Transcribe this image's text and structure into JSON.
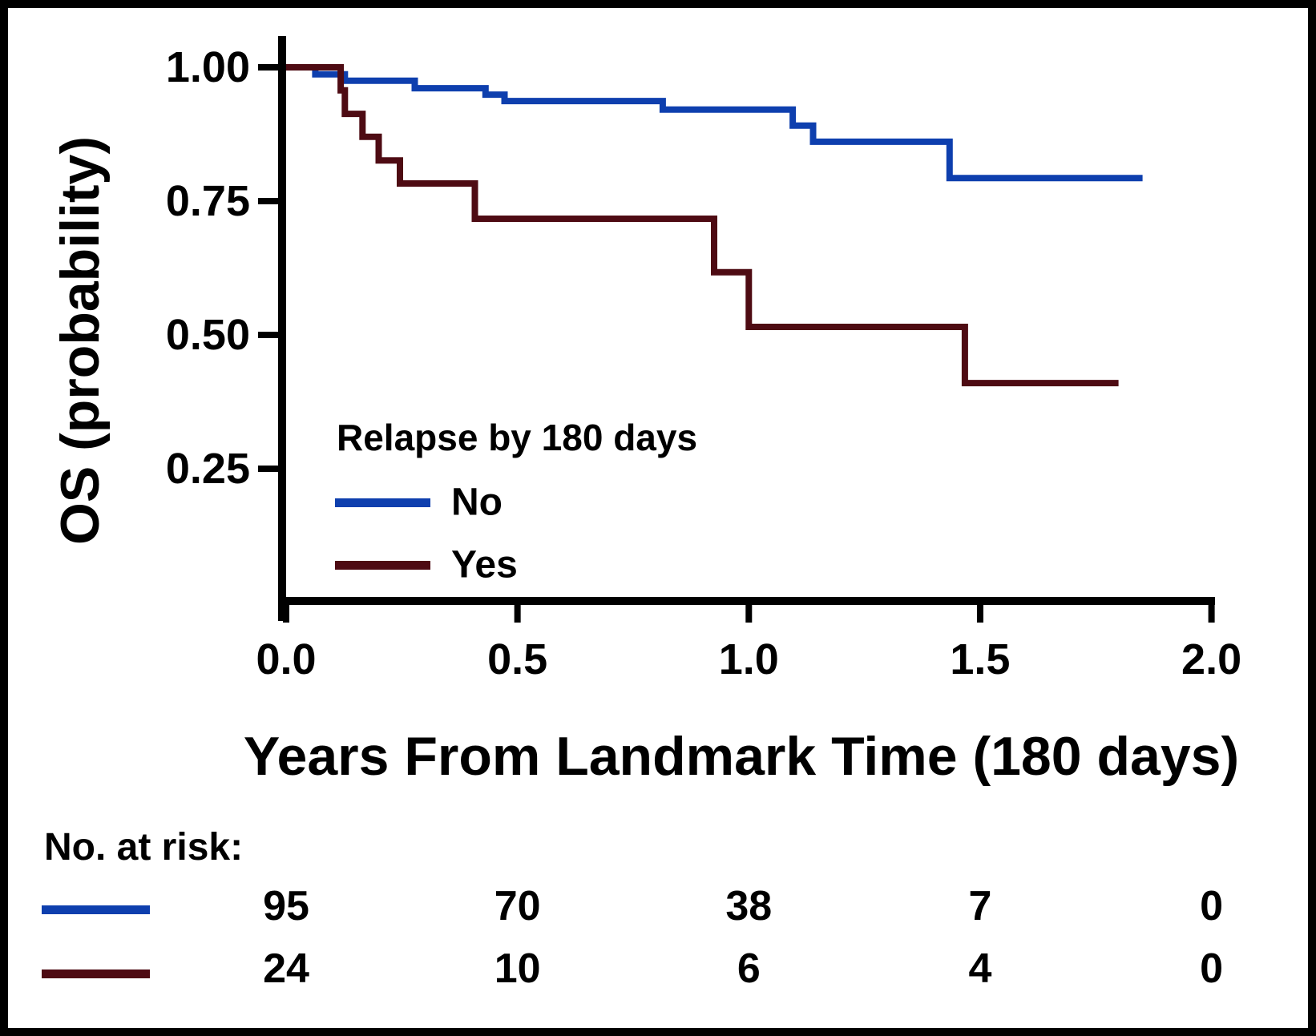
{
  "figure": {
    "background": "#ffffff",
    "border_color": "#000000"
  },
  "chart_data": {
    "type": "line",
    "subtype": "kaplan-meier-step",
    "title": "",
    "xlabel": "Years From Landmark Time (180 days)",
    "ylabel": "OS (probability)",
    "xlim": [
      0,
      2.07
    ],
    "ylim": [
      0,
      1.05
    ],
    "grid": "off",
    "axis_color": "#000000",
    "xticks": {
      "values": [
        0,
        0.5,
        1.0,
        1.5,
        2.0
      ],
      "labels": [
        "0.0",
        "0.5",
        "1.0",
        "1.5",
        "2.0"
      ]
    },
    "yticks": {
      "values": [
        1.0,
        0.75,
        0.5,
        0.25
      ],
      "labels": [
        "1.00",
        "0.75",
        "0.50",
        "0.25"
      ]
    },
    "legend": {
      "title": "Relapse by 180 days",
      "position": "inside-lower-left",
      "entries": [
        {
          "label": "No",
          "color": "#0e3fae"
        },
        {
          "label": "Yes",
          "color": "#4e0b13"
        }
      ]
    },
    "series": [
      {
        "name": "No",
        "color": "#0e3fae",
        "start": [
          0,
          1.0
        ],
        "drops": [
          [
            0.063,
            0.987
          ],
          [
            0.127,
            0.975
          ],
          [
            0.278,
            0.961
          ],
          [
            0.431,
            0.949
          ],
          [
            0.472,
            0.937
          ],
          [
            0.814,
            0.921
          ],
          [
            1.095,
            0.891
          ],
          [
            1.139,
            0.861
          ],
          [
            1.434,
            0.793
          ]
        ],
        "end_t": 1.851
      },
      {
        "name": "Yes",
        "color": "#4e0b13",
        "start": [
          0,
          1.0
        ],
        "drops": [
          [
            0.118,
            0.957
          ],
          [
            0.127,
            0.913
          ],
          [
            0.165,
            0.87
          ],
          [
            0.2,
            0.826
          ],
          [
            0.246,
            0.783
          ],
          [
            0.408,
            0.717
          ],
          [
            0.925,
            0.617
          ],
          [
            1.0,
            0.515
          ],
          [
            1.467,
            0.41
          ]
        ],
        "end_t": 1.799
      }
    ],
    "risk_table": {
      "label": "No. at risk:",
      "times": [
        0,
        0.5,
        1.0,
        1.5,
        2.0
      ],
      "rows": [
        {
          "name": "No",
          "color": "#0e3fae",
          "counts": [
            "95",
            "70",
            "38",
            "7",
            "0"
          ]
        },
        {
          "name": "Yes",
          "color": "#4e0b13",
          "counts": [
            "24",
            "10",
            "6",
            "4",
            "0"
          ]
        }
      ]
    }
  }
}
